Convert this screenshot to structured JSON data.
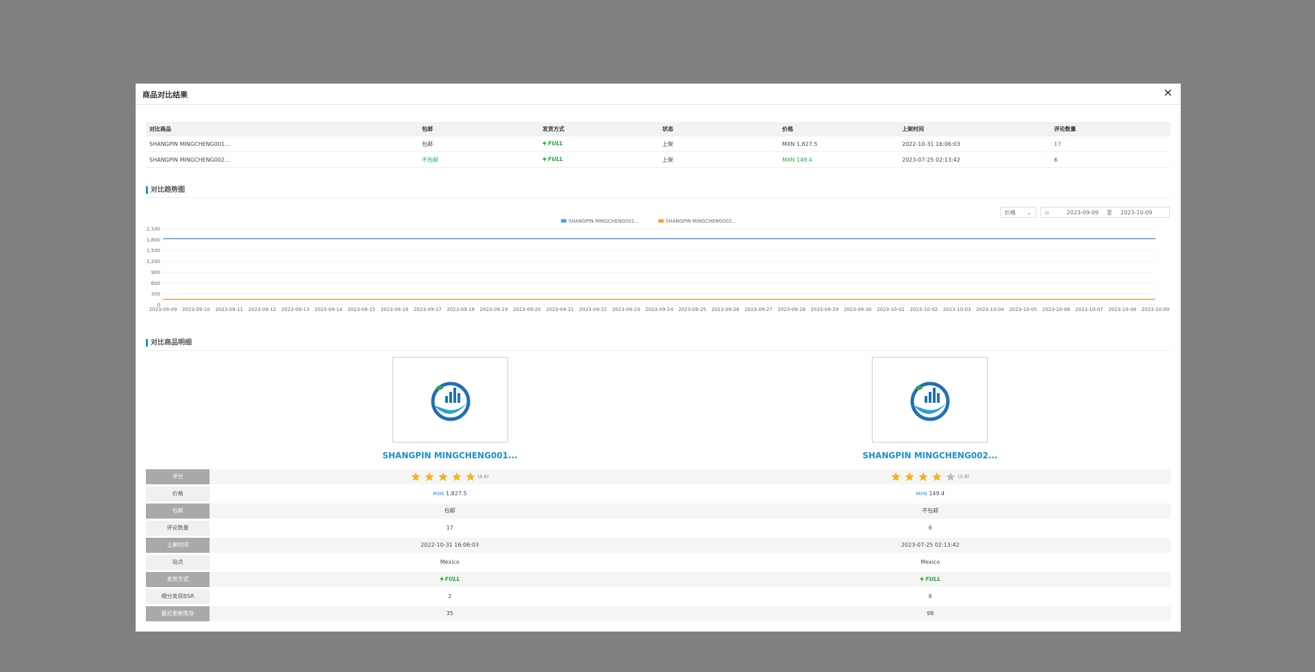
{
  "header": {
    "title": "商品对比结果"
  },
  "table": {
    "columns": [
      "对比商品",
      "包邮",
      "发货方式",
      "状态",
      "价格",
      "上架时间",
      "评论数量"
    ],
    "rows": [
      [
        "SHANGPIN MINGCHENG001...",
        "包邮",
        "FULL",
        "上架",
        "MXN 1,827.5",
        "2022-10-31 16:06:03",
        "17"
      ],
      [
        "SHANGPIN MINGCHENG002...",
        "不包邮",
        "FULL",
        "上架",
        "MXN 149.4",
        "2023-07-25 02:13:42",
        "6"
      ]
    ]
  },
  "trend": {
    "title": "对比趋势图",
    "metric": "价格",
    "date_from": "2023-09-09",
    "date_sep": "至",
    "date_to": "2023-10-09"
  },
  "chart_data": {
    "type": "line",
    "x": [
      "2023-09-09",
      "2023-09-10",
      "2023-09-11",
      "2023-09-12",
      "2023-09-13",
      "2023-09-14",
      "2023-09-15",
      "2023-09-16",
      "2023-09-17",
      "2023-09-18",
      "2023-09-19",
      "2023-09-20",
      "2023-09-21",
      "2023-09-22",
      "2023-09-23",
      "2023-09-24",
      "2023-09-25",
      "2023-09-26",
      "2023-09-27",
      "2023-09-28",
      "2023-09-29",
      "2023-09-30",
      "2023-10-01",
      "2023-10-02",
      "2023-10-03",
      "2023-10-04",
      "2023-10-05",
      "2023-10-06",
      "2023-10-07",
      "2023-10-08",
      "2023-10-09"
    ],
    "series": [
      {
        "name": "SHANGPIN MINGCHENG001...",
        "color": "#4a9ff0",
        "values": [
          1827.5,
          1827.5,
          1827.5,
          1827.5,
          1827.5,
          1827.5,
          1827.5,
          1827.5,
          1827.5,
          1827.5,
          1827.5,
          1827.5,
          1827.5,
          1827.5,
          1827.5,
          1827.5,
          1827.5,
          1827.5,
          1827.5,
          1827.5,
          1827.5,
          1827.5,
          1827.5,
          1827.5,
          1827.5,
          1827.5,
          1827.5,
          1827.5,
          1827.5,
          1827.5,
          1827.5
        ]
      },
      {
        "name": "SHANGPIN MINGCHENG002...",
        "color": "#f5a142",
        "values": [
          149.4,
          149.4,
          149.4,
          149.4,
          149.4,
          149.4,
          149.4,
          149.4,
          149.4,
          149.4,
          149.4,
          149.4,
          149.4,
          149.4,
          149.4,
          149.4,
          149.4,
          149.4,
          149.4,
          149.4,
          149.4,
          149.4,
          149.4,
          149.4,
          149.4,
          149.4,
          149.4,
          149.4,
          149.4,
          149.4,
          149.4
        ]
      }
    ],
    "ylim": [
      0,
      2100
    ],
    "yticks": [
      0,
      300,
      600,
      900,
      {
        "value": 1200,
        "label": "1,200"
      },
      {
        "value": 1500,
        "label": "1,500"
      },
      {
        "value": 1800,
        "label": "1,800"
      },
      {
        "value": 2100,
        "label": "2,100"
      }
    ],
    "grid": true,
    "legend": "top"
  },
  "detail": {
    "title": "对比商品明细",
    "products": [
      "SHANGPIN MINGCHENG001...",
      "SHANGPIN MINGCHENG002..."
    ],
    "rows": [
      {
        "label": "评分",
        "values": [
          {
            "value": 4.8,
            "label": "(4.8)"
          },
          {
            "value": 3.8,
            "label": "(3.8)"
          }
        ]
      },
      {
        "label": "价格",
        "values": [
          [
            "MXN",
            "1,827.5"
          ],
          [
            "MXN",
            "149.4"
          ]
        ]
      },
      {
        "label": "包邮",
        "values": [
          "包邮",
          "不包邮"
        ]
      },
      {
        "label": "评论数量",
        "values": [
          "17",
          "6"
        ]
      },
      {
        "label": "上架时间",
        "values": [
          "2022-10-31 16:06:03",
          "2023-07-25 02:13:42"
        ]
      },
      {
        "label": "站点",
        "values": [
          "Mexico",
          "Mexico"
        ]
      },
      {
        "label": "发货方式",
        "values": [
          "FULL",
          "FULL"
        ]
      },
      {
        "label": "细分类目BSR",
        "values": [
          "2",
          "6"
        ]
      },
      {
        "label": "最近更新库存",
        "values": [
          "35",
          "98"
        ]
      }
    ]
  }
}
